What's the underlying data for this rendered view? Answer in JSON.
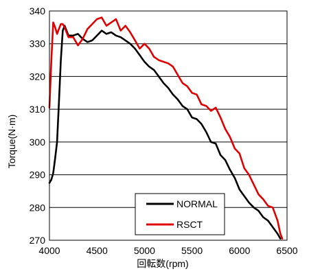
{
  "chart_data": {
    "type": "line",
    "xlabel": "回転数(rpm)",
    "ylabel": "Torque(N·m)",
    "xlim": [
      4000,
      6500
    ],
    "ylim": [
      270,
      340
    ],
    "xticks": [
      "4000",
      "4500",
      "5000",
      "5500",
      "6000",
      "6500"
    ],
    "yticks": [
      "270",
      "280",
      "290",
      "300",
      "310",
      "320",
      "330",
      "340"
    ],
    "grid": "horizontal",
    "legend_position": "bottom-right",
    "series": [
      {
        "name": "NORMAL",
        "color": "#000000",
        "points": [
          [
            4000,
            287.5
          ],
          [
            4020,
            288.5
          ],
          [
            4040,
            290.5
          ],
          [
            4060,
            295
          ],
          [
            4080,
            300
          ],
          [
            4100,
            312
          ],
          [
            4120,
            325
          ],
          [
            4140,
            334
          ],
          [
            4160,
            335.5
          ],
          [
            4180,
            334
          ],
          [
            4200,
            332.5
          ],
          [
            4250,
            332.5
          ],
          [
            4300,
            333
          ],
          [
            4350,
            331.5
          ],
          [
            4400,
            330.5
          ],
          [
            4450,
            331
          ],
          [
            4500,
            332.5
          ],
          [
            4550,
            334
          ],
          [
            4600,
            333
          ],
          [
            4650,
            333.5
          ],
          [
            4700,
            332.5
          ],
          [
            4750,
            332
          ],
          [
            4800,
            331
          ],
          [
            4850,
            330
          ],
          [
            4900,
            328.5
          ],
          [
            4950,
            326.5
          ],
          [
            5000,
            324.5
          ],
          [
            5050,
            323
          ],
          [
            5100,
            322
          ],
          [
            5150,
            320
          ],
          [
            5200,
            318
          ],
          [
            5250,
            316.5
          ],
          [
            5300,
            314.5
          ],
          [
            5350,
            313
          ],
          [
            5400,
            311
          ],
          [
            5450,
            310
          ],
          [
            5500,
            307.5
          ],
          [
            5550,
            307
          ],
          [
            5600,
            305.5
          ],
          [
            5650,
            303
          ],
          [
            5700,
            300
          ],
          [
            5750,
            299.5
          ],
          [
            5800,
            296
          ],
          [
            5850,
            294.5
          ],
          [
            5900,
            291.5
          ],
          [
            5950,
            289
          ],
          [
            6000,
            285.5
          ],
          [
            6050,
            283.5
          ],
          [
            6100,
            281.5
          ],
          [
            6150,
            280
          ],
          [
            6200,
            279
          ],
          [
            6250,
            277
          ],
          [
            6300,
            276
          ],
          [
            6350,
            274
          ],
          [
            6400,
            272
          ],
          [
            6430,
            270.5
          ]
        ]
      },
      {
        "name": "RSCT",
        "color": "#e00000",
        "points": [
          [
            4000,
            310.5
          ],
          [
            4020,
            325
          ],
          [
            4040,
            336.5
          ],
          [
            4060,
            335
          ],
          [
            4080,
            333
          ],
          [
            4100,
            334.5
          ],
          [
            4120,
            336
          ],
          [
            4140,
            336
          ],
          [
            4160,
            335
          ],
          [
            4180,
            333.5
          ],
          [
            4200,
            332
          ],
          [
            4250,
            332
          ],
          [
            4300,
            329.5
          ],
          [
            4350,
            331.5
          ],
          [
            4400,
            334.5
          ],
          [
            4450,
            336
          ],
          [
            4500,
            337.5
          ],
          [
            4550,
            338
          ],
          [
            4600,
            335.5
          ],
          [
            4650,
            336.5
          ],
          [
            4700,
            337.5
          ],
          [
            4750,
            334
          ],
          [
            4800,
            335.5
          ],
          [
            4850,
            333.5
          ],
          [
            4900,
            331
          ],
          [
            4950,
            328.5
          ],
          [
            5000,
            330
          ],
          [
            5050,
            328.5
          ],
          [
            5100,
            326
          ],
          [
            5150,
            325
          ],
          [
            5200,
            324.5
          ],
          [
            5250,
            324
          ],
          [
            5300,
            323
          ],
          [
            5350,
            320.5
          ],
          [
            5400,
            318
          ],
          [
            5450,
            317
          ],
          [
            5500,
            315
          ],
          [
            5550,
            314.5
          ],
          [
            5600,
            311.5
          ],
          [
            5650,
            311
          ],
          [
            5700,
            309.5
          ],
          [
            5750,
            310.5
          ],
          [
            5800,
            307.5
          ],
          [
            5850,
            304
          ],
          [
            5900,
            301.5
          ],
          [
            5950,
            298
          ],
          [
            6000,
            296.5
          ],
          [
            6050,
            292
          ],
          [
            6100,
            290
          ],
          [
            6150,
            287
          ],
          [
            6200,
            284
          ],
          [
            6250,
            282.5
          ],
          [
            6300,
            280.5
          ],
          [
            6350,
            280
          ],
          [
            6400,
            276
          ],
          [
            6430,
            272
          ],
          [
            6450,
            270.5
          ]
        ]
      }
    ]
  }
}
